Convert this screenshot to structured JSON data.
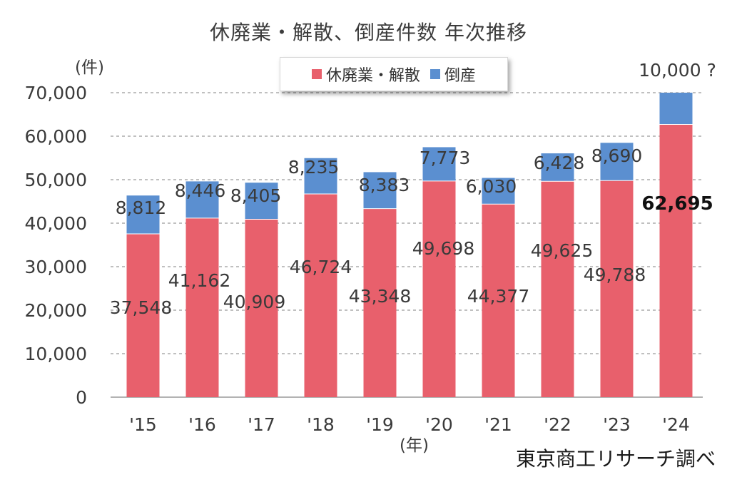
{
  "chart_data": {
    "type": "bar",
    "stacked": true,
    "title": "休廃業・解散、倒産件数 年次推移",
    "ylabel": "(件)",
    "xlabel": "(年)",
    "ylim": [
      0,
      70000
    ],
    "yticks": [
      0,
      10000,
      20000,
      30000,
      40000,
      50000,
      60000,
      70000
    ],
    "ytick_labels": [
      "0",
      "10,000",
      "20,000",
      "30,000",
      "40,000",
      "50,000",
      "60,000",
      "70,000"
    ],
    "grid": true,
    "legend_position": "top-center",
    "categories": [
      "'15",
      "'16",
      "'17",
      "'18",
      "'19",
      "'20",
      "'21",
      "'22",
      "'23",
      "'24"
    ],
    "series": [
      {
        "name": "休廃業・解散",
        "color": "#e8606c",
        "values": [
          37548,
          41162,
          40909,
          46724,
          43348,
          49698,
          44377,
          49625,
          49788,
          62695
        ],
        "labels": [
          "37,548",
          "41,162",
          "40,909",
          "46,724",
          "43,348",
          "49,698",
          "44,377",
          "49,625",
          "49,788",
          "62,695"
        ]
      },
      {
        "name": "倒産",
        "color": "#5b8fd0",
        "values": [
          8812,
          8446,
          8405,
          8235,
          8383,
          7773,
          6030,
          6428,
          8690,
          10000
        ],
        "labels": [
          "8,812",
          "8,446",
          "8,405",
          "8,235",
          "8,383",
          "7,773",
          "6,030",
          "6,428",
          "8,690",
          "10,000 ?"
        ]
      }
    ]
  },
  "source": "東京商工リサーチ調べ"
}
